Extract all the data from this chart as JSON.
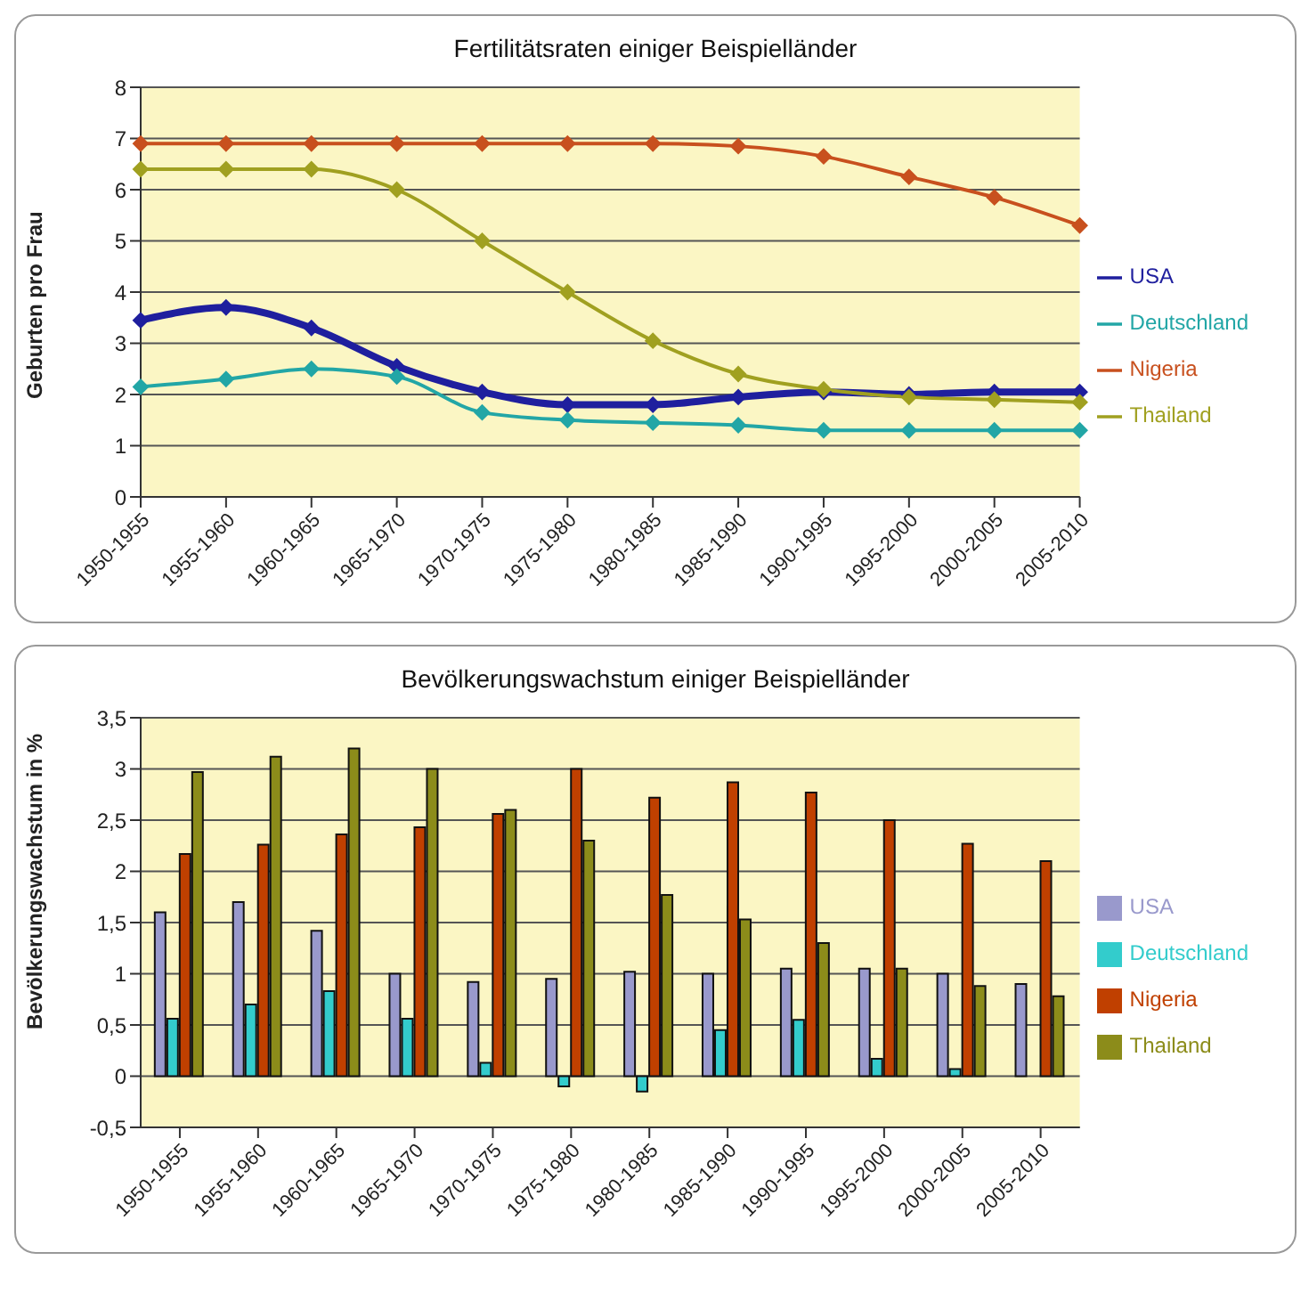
{
  "chart_data": [
    {
      "type": "line",
      "title": "Fertilitätsraten  einiger Beispielländer",
      "ylabel": "Geburten pro Frau",
      "categories": [
        "1950-1955",
        "1955-1960",
        "1960-1965",
        "1965-1970",
        "1970-1975",
        "1975-1980",
        "1980-1985",
        "1985-1990",
        "1990-1995",
        "1995-2000",
        "2000-2005",
        "2005-2010"
      ],
      "ylim": [
        0,
        8
      ],
      "yticks": [
        0,
        1,
        2,
        3,
        4,
        5,
        6,
        7,
        8
      ],
      "grid": "y",
      "legend": "right",
      "marker": "diamond",
      "series": [
        {
          "name": "USA",
          "color": "#1f1f9e",
          "values": [
            3.45,
            3.7,
            3.3,
            2.55,
            2.05,
            1.8,
            1.8,
            1.95,
            2.05,
            2.0,
            2.05,
            2.05
          ]
        },
        {
          "name": "Deutschland",
          "color": "#22a6a6",
          "values": [
            2.15,
            2.3,
            2.5,
            2.35,
            1.65,
            1.5,
            1.45,
            1.4,
            1.3,
            1.3,
            1.3,
            1.3
          ]
        },
        {
          "name": "Nigeria",
          "color": "#c8501e",
          "values": [
            6.9,
            6.9,
            6.9,
            6.9,
            6.9,
            6.9,
            6.9,
            6.85,
            6.65,
            6.25,
            5.85,
            5.3
          ]
        },
        {
          "name": "Thailand",
          "color": "#a0a020",
          "values": [
            6.4,
            6.4,
            6.4,
            6.0,
            5.0,
            4.0,
            3.05,
            2.4,
            2.1,
            1.95,
            1.9,
            1.85
          ]
        }
      ]
    },
    {
      "type": "bar",
      "title": "Bevölkerungswachstum einiger Beispielländer",
      "ylabel": "Bevölkerungswachstum in %",
      "categories": [
        "1950-1955",
        "1955-1960",
        "1960-1965",
        "1965-1970",
        "1970-1975",
        "1975-1980",
        "1980-1985",
        "1985-1990",
        "1990-1995",
        "1995-2000",
        "2000-2005",
        "2005-2010"
      ],
      "ylim": [
        -0.5,
        3.5
      ],
      "yticks": [
        {
          "value": -0.5,
          "label": "-0,5"
        },
        0,
        {
          "value": 0.5,
          "label": "0,5"
        },
        1,
        {
          "value": 1.5,
          "label": "1,5"
        },
        2,
        {
          "value": 2.5,
          "label": "2,5"
        },
        3,
        {
          "value": 3.5,
          "label": "3,5"
        }
      ],
      "grid": "y",
      "legend": "right",
      "series": [
        {
          "name": "USA",
          "color": "#9999cc",
          "values": [
            1.6,
            1.7,
            1.42,
            1.0,
            0.92,
            0.95,
            1.02,
            1.0,
            1.05,
            1.05,
            1.0,
            0.9
          ]
        },
        {
          "name": "Deutschland",
          "color": "#33cccc",
          "values": [
            0.56,
            0.7,
            0.83,
            0.56,
            0.13,
            -0.1,
            -0.15,
            0.45,
            0.55,
            0.17,
            0.07,
            0
          ]
        },
        {
          "name": "Nigeria",
          "color": "#c04000",
          "values": [
            2.17,
            2.26,
            2.36,
            2.43,
            2.56,
            3.0,
            2.72,
            2.87,
            2.77,
            2.5,
            2.27,
            2.1
          ]
        },
        {
          "name": "Thailand",
          "color": "#8c8c1a",
          "values": [
            2.97,
            3.12,
            3.2,
            3.0,
            2.6,
            2.3,
            1.77,
            1.53,
            1.3,
            1.05,
            0.88,
            0.78
          ]
        }
      ]
    }
  ]
}
